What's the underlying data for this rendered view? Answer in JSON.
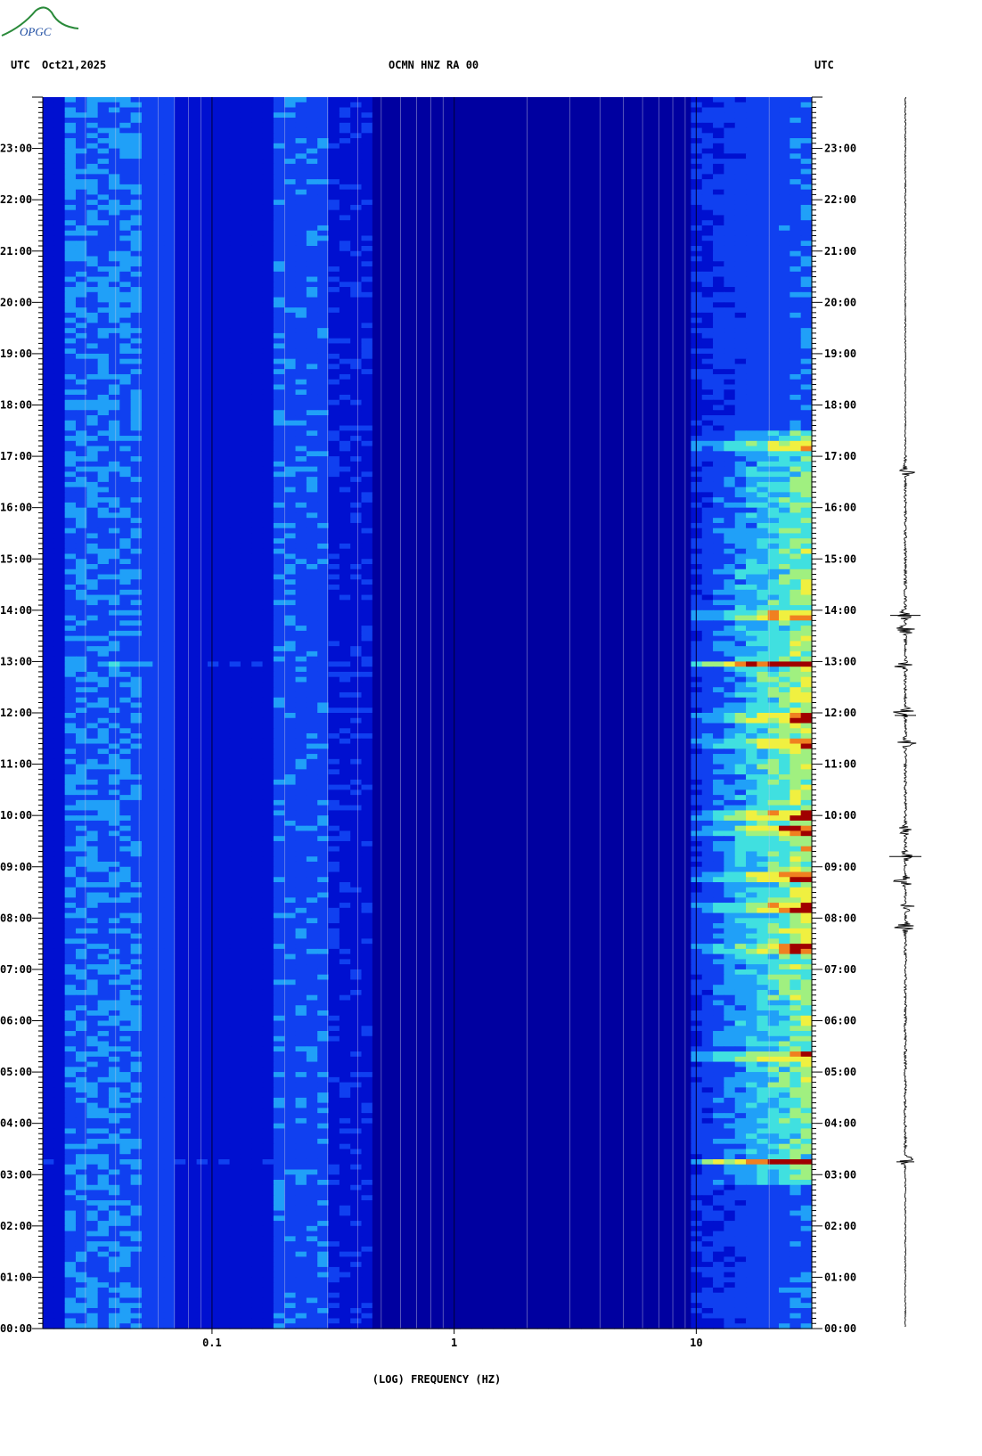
{
  "logo": {
    "text": "OPGC"
  },
  "header": {
    "left_zone": "UTC",
    "date": "Oct21,2025",
    "station": "OCMN HNZ RA 00",
    "right_zone": "UTC"
  },
  "chart_data": {
    "type": "heatmap",
    "xlabel": "(LOG) FREQUENCY (HZ)",
    "xscale": "log",
    "xlim": [
      0.02,
      30
    ],
    "x_ticks": [
      {
        "value": 0.1,
        "label": "0.1"
      },
      {
        "value": 1,
        "label": "1"
      },
      {
        "value": 10,
        "label": "10"
      }
    ],
    "ylim_hours": [
      0,
      24
    ],
    "y_ticks": [
      "00:00",
      "01:00",
      "02:00",
      "03:00",
      "04:00",
      "05:00",
      "06:00",
      "07:00",
      "08:00",
      "09:00",
      "10:00",
      "11:00",
      "12:00",
      "13:00",
      "14:00",
      "15:00",
      "16:00",
      "17:00",
      "18:00",
      "19:00",
      "20:00",
      "21:00",
      "22:00",
      "23:00"
    ],
    "colormap": [
      "#0000a0",
      "#0010d0",
      "#1040f0",
      "#20a0f8",
      "#40e0e0",
      "#a0f080",
      "#f0f040",
      "#f08020",
      "#a00000"
    ],
    "events_hours": [
      3.25,
      5.3,
      7.4,
      8.2,
      8.8,
      9.7,
      10.0,
      11.4,
      11.9,
      12.95,
      13.9,
      17.2
    ],
    "seismogram_events_hours": [
      3.25,
      7.8,
      8.2,
      8.7,
      9.2,
      9.7,
      11.4,
      12.0,
      12.9,
      13.6,
      13.9,
      16.7
    ]
  }
}
